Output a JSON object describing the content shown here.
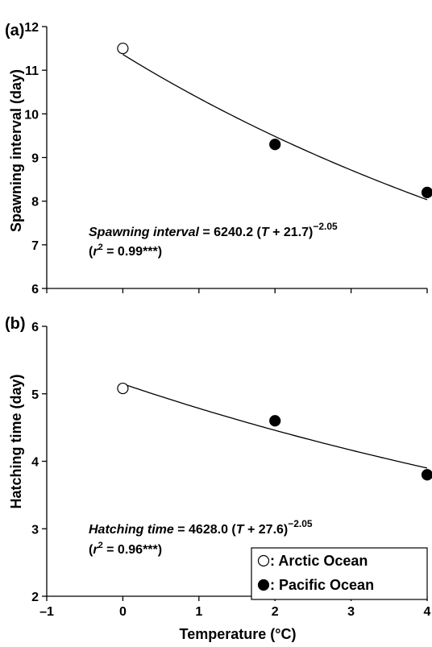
{
  "chart_data": [
    {
      "type": "scatter",
      "panel_label": "(a)",
      "ylabel": "Spawning interval (day)",
      "xlabel": "",
      "xlim": [
        -1,
        4
      ],
      "ylim": [
        6,
        12
      ],
      "y_ticks": [
        "6",
        "7",
        "8",
        "9",
        "10",
        "11",
        "12"
      ],
      "x_ticks": [],
      "series": [
        {
          "name": "Arctic Ocean",
          "marker": "open-circle",
          "points": [
            {
              "x": 0,
              "y": 11.5
            }
          ]
        },
        {
          "name": "Pacific Ocean",
          "marker": "filled-circle",
          "points": [
            {
              "x": 2,
              "y": 9.3
            },
            {
              "x": 4,
              "y": 8.2
            }
          ]
        }
      ],
      "fit": {
        "a": 6240.2,
        "c": 21.7,
        "b": -2.05
      },
      "equation": {
        "label": "Spawning interval",
        "rest": " = 6240.2 (",
        "var": "T",
        "plus": " + 21.7)",
        "exponent": "−2.05",
        "r2_open": "(",
        "r2_var": "r",
        "r2_sup": "2",
        "r2_value": " = 0.99***)"
      }
    },
    {
      "type": "scatter",
      "panel_label": "(b)",
      "ylabel": "Hatching time (day)",
      "xlabel": "Temperature (°C)",
      "xlim": [
        -1,
        4
      ],
      "ylim": [
        2,
        6
      ],
      "y_ticks": [
        "2",
        "3",
        "4",
        "5",
        "6"
      ],
      "x_ticks": [
        "–1",
        "0",
        "1",
        "2",
        "3",
        "4"
      ],
      "series": [
        {
          "name": "Arctic Ocean",
          "marker": "open-circle",
          "points": [
            {
              "x": 0,
              "y": 5.08
            }
          ]
        },
        {
          "name": "Pacific Ocean",
          "marker": "filled-circle",
          "points": [
            {
              "x": 2,
              "y": 4.6
            },
            {
              "x": 4,
              "y": 3.8
            }
          ]
        }
      ],
      "fit": {
        "a": 4628.0,
        "c": 27.6,
        "b": -2.05
      },
      "equation": {
        "label": "Hatching time",
        "rest": " = 4628.0 (",
        "var": "T",
        "plus": " + 27.6)",
        "exponent": "−2.05",
        "r2_open": "(",
        "r2_var": "r",
        "r2_sup": "2",
        "r2_value": " = 0.96***)"
      },
      "legend": {
        "placement": "bottom-right",
        "items": [
          {
            "marker": "open-circle",
            "label": ": Arctic Ocean"
          },
          {
            "marker": "filled-circle",
            "label": ": Pacific Ocean"
          }
        ]
      }
    }
  ]
}
